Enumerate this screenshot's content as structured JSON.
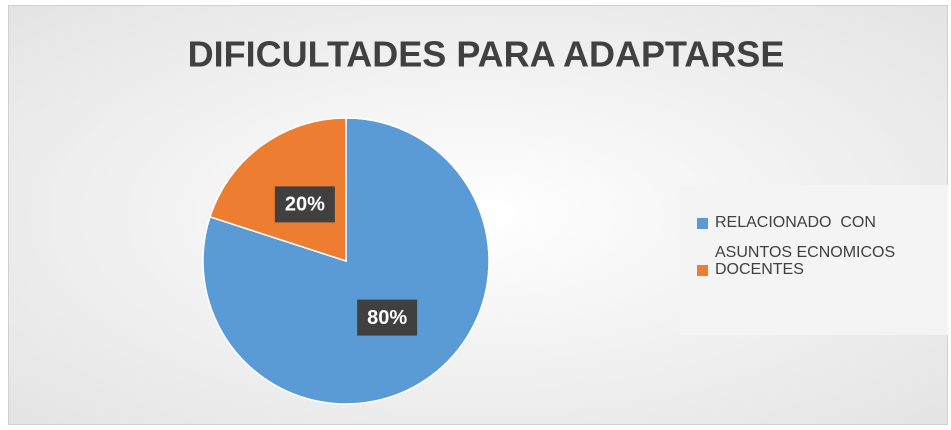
{
  "chart_data": {
    "type": "pie",
    "title": "DIFICULTADES PARA ADAPTARSE",
    "categories": [
      "RELACIONADO  CON ASUNTOS ECNOMICOS",
      "DOCENTES"
    ],
    "values": [
      80,
      20
    ],
    "value_labels": [
      "80%",
      "20%"
    ],
    "colors": [
      "#5b9bd5",
      "#ed7d31"
    ],
    "legend": "right"
  }
}
